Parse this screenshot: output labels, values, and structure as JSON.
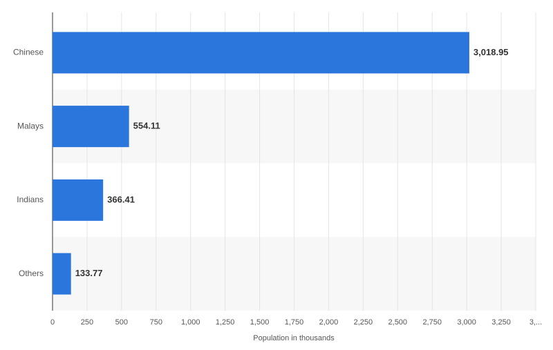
{
  "chart_data": {
    "type": "bar",
    "orientation": "horizontal",
    "x_label": "Population in thousands",
    "categories": [
      "Chinese",
      "Malays",
      "Indians",
      "Others"
    ],
    "values": [
      3018.95,
      554.11,
      366.41,
      133.77
    ],
    "value_labels": [
      "3,018.95",
      "554.11",
      "366.41",
      "133.77"
    ],
    "color": "#2b76dc",
    "xlim": [
      0,
      3500
    ],
    "xticks": [
      0,
      250,
      500,
      750,
      {
        "value": 1000,
        "label": "1,000"
      },
      {
        "value": 1250,
        "label": "1,250"
      },
      {
        "value": 1500,
        "label": "1,500"
      },
      {
        "value": 1750,
        "label": "1,750"
      },
      {
        "value": 2000,
        "label": "2,000"
      },
      {
        "value": 2250,
        "label": "2,250"
      },
      {
        "value": 2500,
        "label": "2,500"
      },
      {
        "value": 2750,
        "label": "2,750"
      },
      {
        "value": 3000,
        "label": "3,000"
      },
      {
        "value": 3250,
        "label": "3,250"
      },
      {
        "value": 3500,
        "label": "3,..."
      }
    ],
    "grid": true
  }
}
